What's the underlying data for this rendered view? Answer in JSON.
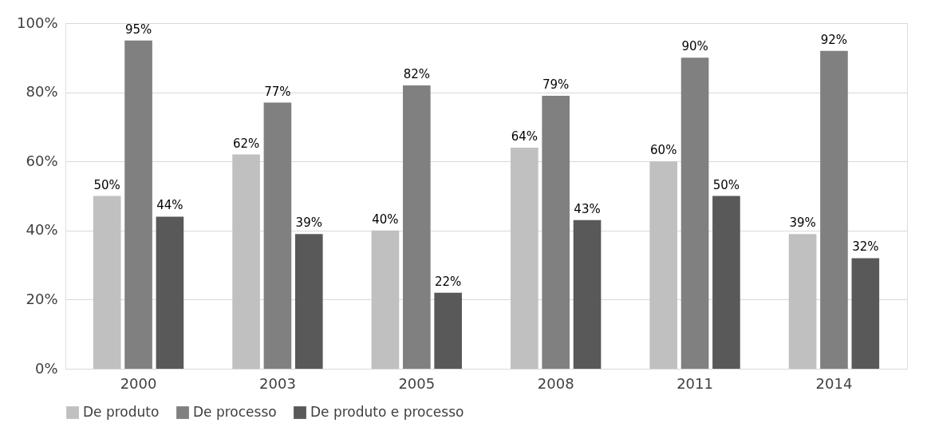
{
  "chart_data": {
    "type": "bar",
    "categories": [
      "2000",
      "2003",
      "2005",
      "2008",
      "2011",
      "2014"
    ],
    "series": [
      {
        "name": "De produto",
        "color": "#c0c0c0",
        "values": [
          50,
          62,
          40,
          64,
          60,
          39
        ],
        "value_labels": [
          "50%",
          "62%",
          "40%",
          "64%",
          "60%",
          "39%"
        ]
      },
      {
        "name": "De processo",
        "color": "#808080",
        "values": [
          95,
          77,
          82,
          79,
          90,
          92
        ],
        "value_labels": [
          "95%",
          "77%",
          "82%",
          "79%",
          "90%",
          "92%"
        ]
      },
      {
        "name": "De produto e processo",
        "color": "#595959",
        "values": [
          44,
          39,
          22,
          43,
          50,
          32
        ],
        "value_labels": [
          "44%",
          "39%",
          "22%",
          "43%",
          "50%",
          "32%"
        ]
      }
    ],
    "ylim": [
      0,
      100
    ],
    "yticks": [
      {
        "value": 0,
        "label": "0%"
      },
      {
        "value": 20,
        "label": "20%"
      },
      {
        "value": 40,
        "label": "40%"
      },
      {
        "value": 60,
        "label": "60%"
      },
      {
        "value": 80,
        "label": "80%"
      },
      {
        "value": 100,
        "label": "100%"
      }
    ],
    "grid": "y",
    "legend": "bottom"
  }
}
